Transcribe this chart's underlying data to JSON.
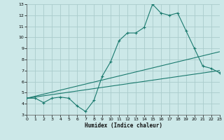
{
  "xlabel": "Humidex (Indice chaleur)",
  "bg_color": "#cce8e8",
  "grid_color": "#aacccc",
  "line_color": "#1a7a6e",
  "xlim": [
    0,
    23
  ],
  "ylim": [
    3,
    13
  ],
  "xticks": [
    0,
    1,
    2,
    3,
    4,
    5,
    6,
    7,
    8,
    9,
    10,
    11,
    12,
    13,
    14,
    15,
    16,
    17,
    18,
    19,
    20,
    21,
    22,
    23
  ],
  "yticks": [
    3,
    4,
    5,
    6,
    7,
    8,
    9,
    10,
    11,
    12,
    13
  ],
  "line1_x": [
    0,
    1,
    2,
    3,
    4,
    5,
    6,
    7,
    8,
    9,
    10,
    11,
    12,
    13,
    14,
    15,
    16,
    17,
    18,
    19,
    20,
    21,
    22,
    23
  ],
  "line1_y": [
    4.5,
    4.5,
    4.1,
    4.5,
    4.6,
    4.5,
    3.8,
    3.3,
    4.3,
    6.5,
    7.8,
    9.7,
    10.4,
    10.4,
    10.9,
    13.0,
    12.2,
    12.0,
    12.2,
    10.6,
    9.0,
    7.4,
    7.2,
    6.8
  ],
  "line2_x": [
    0,
    23
  ],
  "line2_y": [
    4.5,
    7.0
  ],
  "line3_x": [
    0,
    23
  ],
  "line3_y": [
    4.5,
    8.7
  ],
  "figsize": [
    3.2,
    2.0
  ],
  "dpi": 100
}
